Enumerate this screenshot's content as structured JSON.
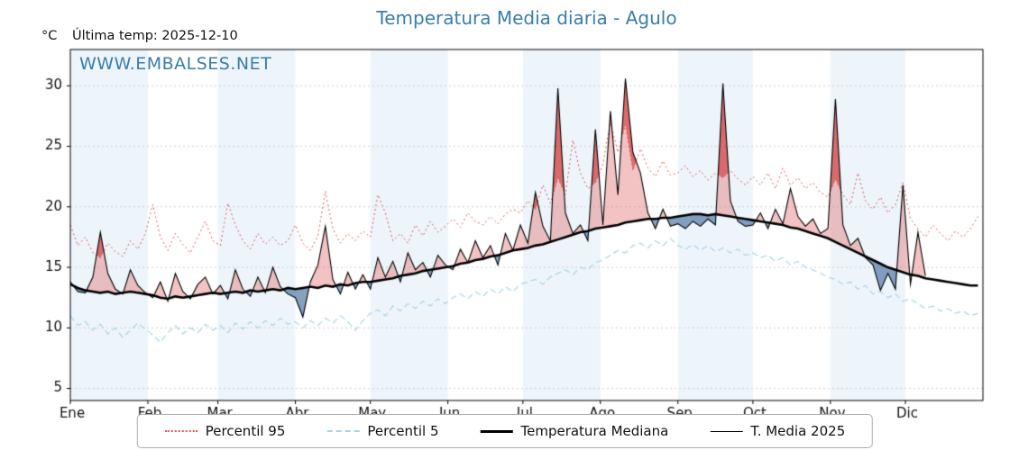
{
  "header": {
    "title": "Temperatura Media diaria - Agulo",
    "unit_label": "°C",
    "last_temp_label": "Última temp: 2025-12-10",
    "watermark": "WWW.EMBALSES.NET"
  },
  "colors": {
    "title_blue": "#3a7dab",
    "p95_red": "#e25555",
    "p5_blue": "#a8d4e6",
    "median_black": "#000000",
    "band_blue": "#edf5fb"
  },
  "legend": [
    {
      "label": "Percentil 95",
      "color": "#e25555",
      "line": "dotted",
      "weight": 2,
      "icon": "percentil95-line-icon"
    },
    {
      "label": "Percentil 5",
      "color": "#a8d4e6",
      "line": "dashed",
      "weight": 2,
      "icon": "percentil5-line-icon"
    },
    {
      "label": "Temperatura Mediana",
      "color": "#000000",
      "line": "solid",
      "weight": 3,
      "icon": "mediana-line-icon"
    },
    {
      "label": "T. Media 2025",
      "color": "#000000",
      "line": "solid",
      "weight": 1,
      "icon": "tmedia-line-icon"
    }
  ],
  "chart_data": {
    "type": "line",
    "title": "Temperatura Media diaria - Agulo",
    "xlabel": "",
    "ylabel": "°C",
    "ylim": [
      4,
      33
    ],
    "y_ticks": [
      5,
      10,
      15,
      20,
      25,
      30
    ],
    "x_tick_labels": [
      "Ene",
      "Feb",
      "Mar",
      "Abr",
      "May",
      "Jun",
      "Jul",
      "Ago",
      "Sep",
      "Oct",
      "Nov",
      "Dic"
    ],
    "month_start_days": [
      0,
      31,
      59,
      90,
      120,
      151,
      181,
      212,
      243,
      273,
      304,
      334
    ],
    "x_step_days": 3,
    "band_color": "#edf5fb",
    "grid_color": "#cfcfcf",
    "fills": {
      "above_median": "rgba(224,96,96,0.38)",
      "above_p95": "rgba(202,38,38,0.55)",
      "below_median": "rgba(70,110,160,0.65)"
    },
    "series": [
      {
        "key": "p95",
        "name": "Percentil 95",
        "color": "#e25555",
        "dash": "dotted",
        "width": 1,
        "values": [
          18.5,
          16.8,
          17.5,
          16.2,
          15.8,
          17.0,
          16.3,
          15.9,
          17.2,
          16.5,
          17.8,
          20.2,
          17.5,
          16.4,
          17.8,
          16.9,
          16.2,
          17.5,
          18.8,
          17.2,
          16.8,
          20.3,
          18.5,
          17.2,
          16.5,
          17.8,
          16.9,
          17.5,
          16.8,
          17.2,
          18.5,
          17.0,
          16.4,
          17.6,
          21.3,
          18.2,
          17.0,
          17.8,
          17.2,
          18.0,
          17.5,
          21.0,
          19.5,
          17.2,
          17.8,
          17.0,
          18.5,
          17.6,
          18.8,
          17.9,
          18.4,
          19.0,
          18.3,
          19.5,
          18.8,
          18.5,
          19.2,
          18.6,
          19.4,
          19.8,
          19.5,
          20.5,
          19.8,
          21.8,
          20.3,
          22.4,
          21.0,
          25.5,
          22.8,
          21.5,
          22.0,
          23.5,
          27.0,
          24.5,
          26.8,
          23.0,
          24.8,
          23.2,
          22.5,
          23.8,
          22.6,
          22.8,
          23.4,
          22.5,
          23.0,
          22.2,
          22.8,
          22.4,
          23.0,
          22.3,
          21.8,
          22.5,
          21.8,
          22.8,
          21.5,
          23.2,
          21.8,
          22.4,
          21.5,
          22.0,
          21.2,
          20.8,
          22.3,
          21.0,
          20.2,
          22.8,
          20.5,
          19.8,
          20.8,
          19.5,
          20.2,
          22.0,
          19.0,
          18.2,
          17.5,
          18.5,
          17.8,
          17.2,
          18.0,
          17.5,
          18.2,
          19.2
        ]
      },
      {
        "key": "p5",
        "name": "Percentil 5",
        "color": "#a8d4e6",
        "dash": "dashed",
        "width": 1.2,
        "values": [
          11.0,
          10.2,
          10.5,
          9.8,
          10.3,
          9.5,
          10.0,
          9.2,
          9.8,
          10.4,
          9.9,
          9.4,
          8.8,
          9.6,
          10.2,
          9.5,
          10.0,
          9.6,
          10.3,
          9.8,
          10.2,
          9.6,
          10.4,
          9.9,
          10.5,
          10.0,
          10.6,
          10.2,
          10.8,
          10.3,
          10.5,
          10.0,
          10.6,
          10.2,
          10.8,
          10.4,
          11.0,
          10.5,
          9.8,
          10.6,
          11.2,
          11.5,
          11.0,
          11.8,
          11.4,
          12.0,
          11.6,
          12.2,
          11.8,
          12.4,
          12.0,
          12.5,
          12.8,
          12.4,
          13.0,
          12.6,
          13.2,
          12.8,
          13.4,
          13.0,
          13.6,
          13.8,
          14.0,
          13.6,
          14.2,
          14.5,
          14.8,
          14.4,
          15.0,
          14.8,
          15.4,
          15.6,
          16.0,
          16.4,
          16.2,
          16.8,
          17.0,
          16.6,
          17.2,
          16.8,
          17.4,
          16.8,
          16.5,
          16.9,
          16.4,
          16.8,
          16.3,
          16.6,
          16.2,
          16.5,
          16.0,
          16.2,
          15.8,
          16.0,
          15.5,
          15.8,
          15.2,
          15.5,
          15.0,
          14.8,
          14.5,
          14.2,
          14.0,
          13.6,
          13.8,
          13.2,
          13.5,
          12.8,
          13.0,
          12.5,
          12.8,
          12.2,
          12.4,
          12.0,
          11.6,
          11.8,
          11.4,
          11.6,
          11.2,
          11.4,
          11.0,
          11.2
        ]
      },
      {
        "key": "median",
        "name": "Temperatura Mediana",
        "color": "#000000",
        "dash": "solid",
        "width": 2.6,
        "values": [
          13.6,
          13.3,
          13.1,
          13.0,
          12.9,
          13.0,
          12.8,
          12.9,
          13.0,
          12.9,
          12.8,
          12.7,
          12.5,
          12.4,
          12.6,
          12.5,
          12.6,
          12.7,
          12.8,
          12.9,
          12.8,
          12.9,
          13.0,
          12.9,
          13.1,
          13.0,
          13.1,
          13.2,
          13.1,
          13.3,
          13.2,
          13.3,
          13.4,
          13.3,
          13.5,
          13.4,
          13.6,
          13.5,
          13.7,
          13.8,
          13.8,
          13.9,
          14.0,
          14.1,
          14.3,
          14.4,
          14.5,
          14.7,
          14.8,
          14.9,
          15.0,
          15.1,
          15.3,
          15.4,
          15.6,
          15.7,
          15.9,
          16.0,
          16.2,
          16.4,
          16.5,
          16.6,
          16.8,
          16.9,
          17.1,
          17.3,
          17.5,
          17.7,
          17.9,
          18.0,
          18.2,
          18.3,
          18.4,
          18.5,
          18.7,
          18.8,
          18.9,
          19.0,
          19.0,
          19.1,
          19.1,
          19.2,
          19.3,
          19.4,
          19.4,
          19.3,
          19.4,
          19.3,
          19.2,
          19.1,
          19.0,
          18.9,
          18.8,
          18.7,
          18.6,
          18.5,
          18.3,
          18.2,
          18.0,
          17.8,
          17.6,
          17.4,
          17.1,
          16.8,
          16.5,
          16.2,
          15.9,
          15.6,
          15.3,
          15.0,
          14.8,
          14.6,
          14.4,
          14.3,
          14.1,
          14.0,
          13.9,
          13.8,
          13.7,
          13.6,
          13.5,
          13.5
        ]
      },
      {
        "key": "t2025",
        "name": "T. Media 2025",
        "color": "#000000",
        "dash": "solid",
        "width": 1.1,
        "values": [
          13.8,
          13.0,
          12.9,
          14.2,
          17.9,
          14.5,
          13.2,
          12.8,
          14.8,
          13.5,
          12.9,
          12.5,
          13.8,
          12.2,
          14.5,
          13.0,
          12.4,
          13.6,
          14.2,
          12.8,
          13.5,
          12.4,
          14.8,
          13.2,
          12.6,
          14.2,
          12.9,
          15.0,
          13.4,
          12.8,
          12.5,
          10.9,
          13.8,
          15.2,
          18.4,
          14.0,
          12.8,
          14.6,
          13.2,
          14.4,
          13.2,
          15.8,
          14.2,
          15.5,
          13.8,
          16.2,
          14.8,
          15.4,
          14.2,
          16.0,
          15.2,
          14.8,
          16.5,
          15.4,
          17.2,
          15.8,
          16.8,
          15.2,
          17.8,
          16.4,
          18.5,
          17.0,
          21.2,
          18.4,
          17.2,
          29.8,
          19.5,
          17.8,
          18.5,
          17.2,
          26.4,
          18.5,
          27.9,
          21.0,
          30.6,
          24.5,
          22.8,
          19.5,
          18.2,
          19.8,
          18.4,
          18.6,
          18.2,
          18.8,
          18.4,
          19.0,
          18.5,
          30.2,
          20.5,
          18.8,
          18.4,
          18.5,
          19.5,
          18.2,
          19.8,
          18.6,
          21.5,
          19.2,
          18.4,
          19.0,
          17.8,
          18.2,
          28.9,
          18.5,
          16.8,
          17.4,
          15.8,
          15.2,
          13.1,
          14.5,
          13.2,
          21.8,
          13.6,
          17.9,
          14.3
        ]
      }
    ]
  }
}
